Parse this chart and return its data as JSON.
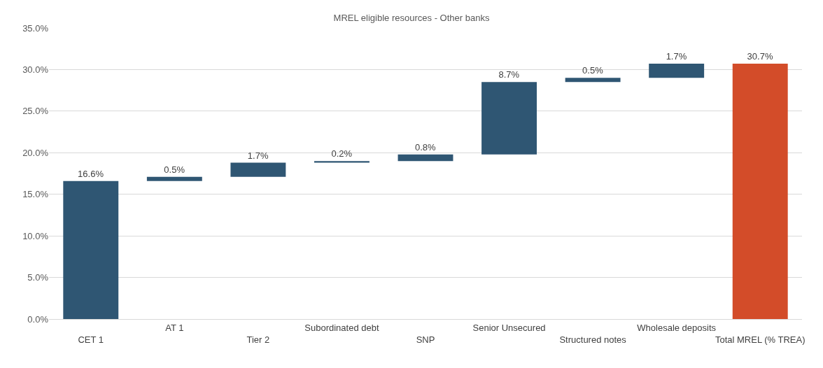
{
  "chart_data": {
    "type": "bar",
    "title": "MREL eligible resources - Other banks",
    "categories": [
      "CET 1",
      "AT 1",
      "Tier 2",
      "Subordinated debt",
      "SNP",
      "Senior Unsecured",
      "Structured notes",
      "Wholesale deposits",
      "Total MREL (% TREA)"
    ],
    "values": [
      16.6,
      0.5,
      1.7,
      0.2,
      0.8,
      8.7,
      0.5,
      1.7,
      30.7
    ],
    "base": [
      0,
      16.6,
      17.1,
      18.8,
      19.0,
      19.8,
      28.5,
      29.0,
      0
    ],
    "colors": [
      "#2f5673",
      "#2f5673",
      "#2f5673",
      "#2f5673",
      "#2f5673",
      "#2f5673",
      "#2f5673",
      "#2f5673",
      "#d34c29"
    ],
    "value_labels": [
      "16.6%",
      "0.5%",
      "1.7%",
      "0.2%",
      "0.8%",
      "8.7%",
      "0.5%",
      "1.7%",
      "30.7%"
    ],
    "ylim": [
      0,
      35
    ],
    "yticks": [
      {
        "value": 0,
        "label": "0.0%"
      },
      {
        "value": 5,
        "label": "5.0%"
      },
      {
        "value": 10,
        "label": "10.0%"
      },
      {
        "value": 15,
        "label": "15.0%"
      },
      {
        "value": 20,
        "label": "20.0%"
      },
      {
        "value": 25,
        "label": "25.0%"
      },
      {
        "value": 30,
        "label": "30.0%"
      },
      {
        "value": 35,
        "label": "35.0%"
      }
    ],
    "grid": "y",
    "legend": false
  }
}
